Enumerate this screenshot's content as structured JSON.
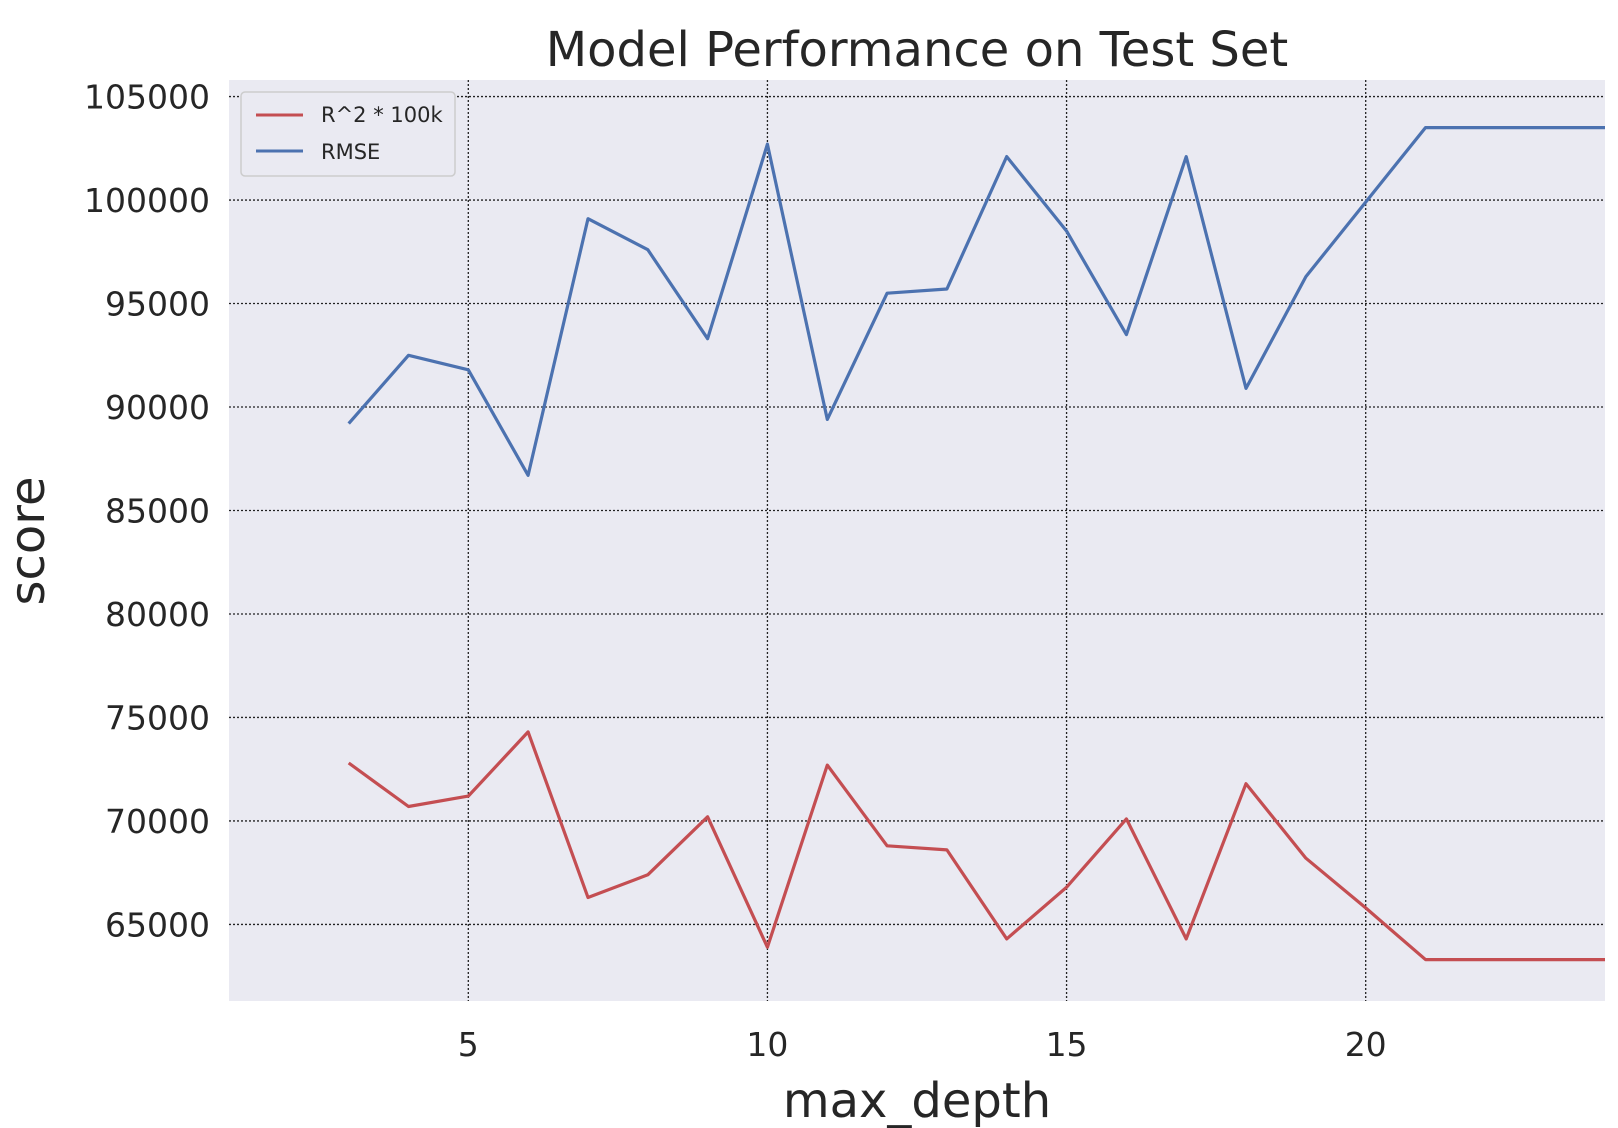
{
  "chart_data": {
    "type": "line",
    "title": "Model Performance on Test Set",
    "xlabel": "max_depth",
    "ylabel": "score",
    "xlim": [
      1,
      24
    ],
    "ylim": [
      61300,
      105800
    ],
    "xticks": [
      5,
      10,
      15,
      20
    ],
    "yticks": [
      65000,
      70000,
      75000,
      80000,
      85000,
      90000,
      95000,
      100000,
      105000
    ],
    "grid": true,
    "legend_position": "top-left",
    "x": [
      3,
      4,
      5,
      6,
      7,
      8,
      9,
      10,
      11,
      12,
      13,
      14,
      15,
      16,
      17,
      18,
      19,
      20,
      21,
      22,
      23,
      24
    ],
    "series": [
      {
        "name": "R^2 * 100k",
        "color": "#c44e52",
        "values": [
          72800,
          70700,
          71200,
          74300,
          66300,
          67400,
          70200,
          63900,
          72700,
          68800,
          68600,
          64300,
          66800,
          70100,
          64300,
          71800,
          68200,
          65800,
          63300,
          63300,
          63300,
          63300
        ]
      },
      {
        "name": "RMSE",
        "color": "#4c72b0",
        "values": [
          89200,
          92500,
          91800,
          86700,
          99100,
          97600,
          93300,
          102700,
          89400,
          95500,
          95700,
          102100,
          98500,
          93500,
          102100,
          90900,
          96300,
          99900,
          103500,
          103500,
          103500,
          103500
        ]
      }
    ]
  }
}
